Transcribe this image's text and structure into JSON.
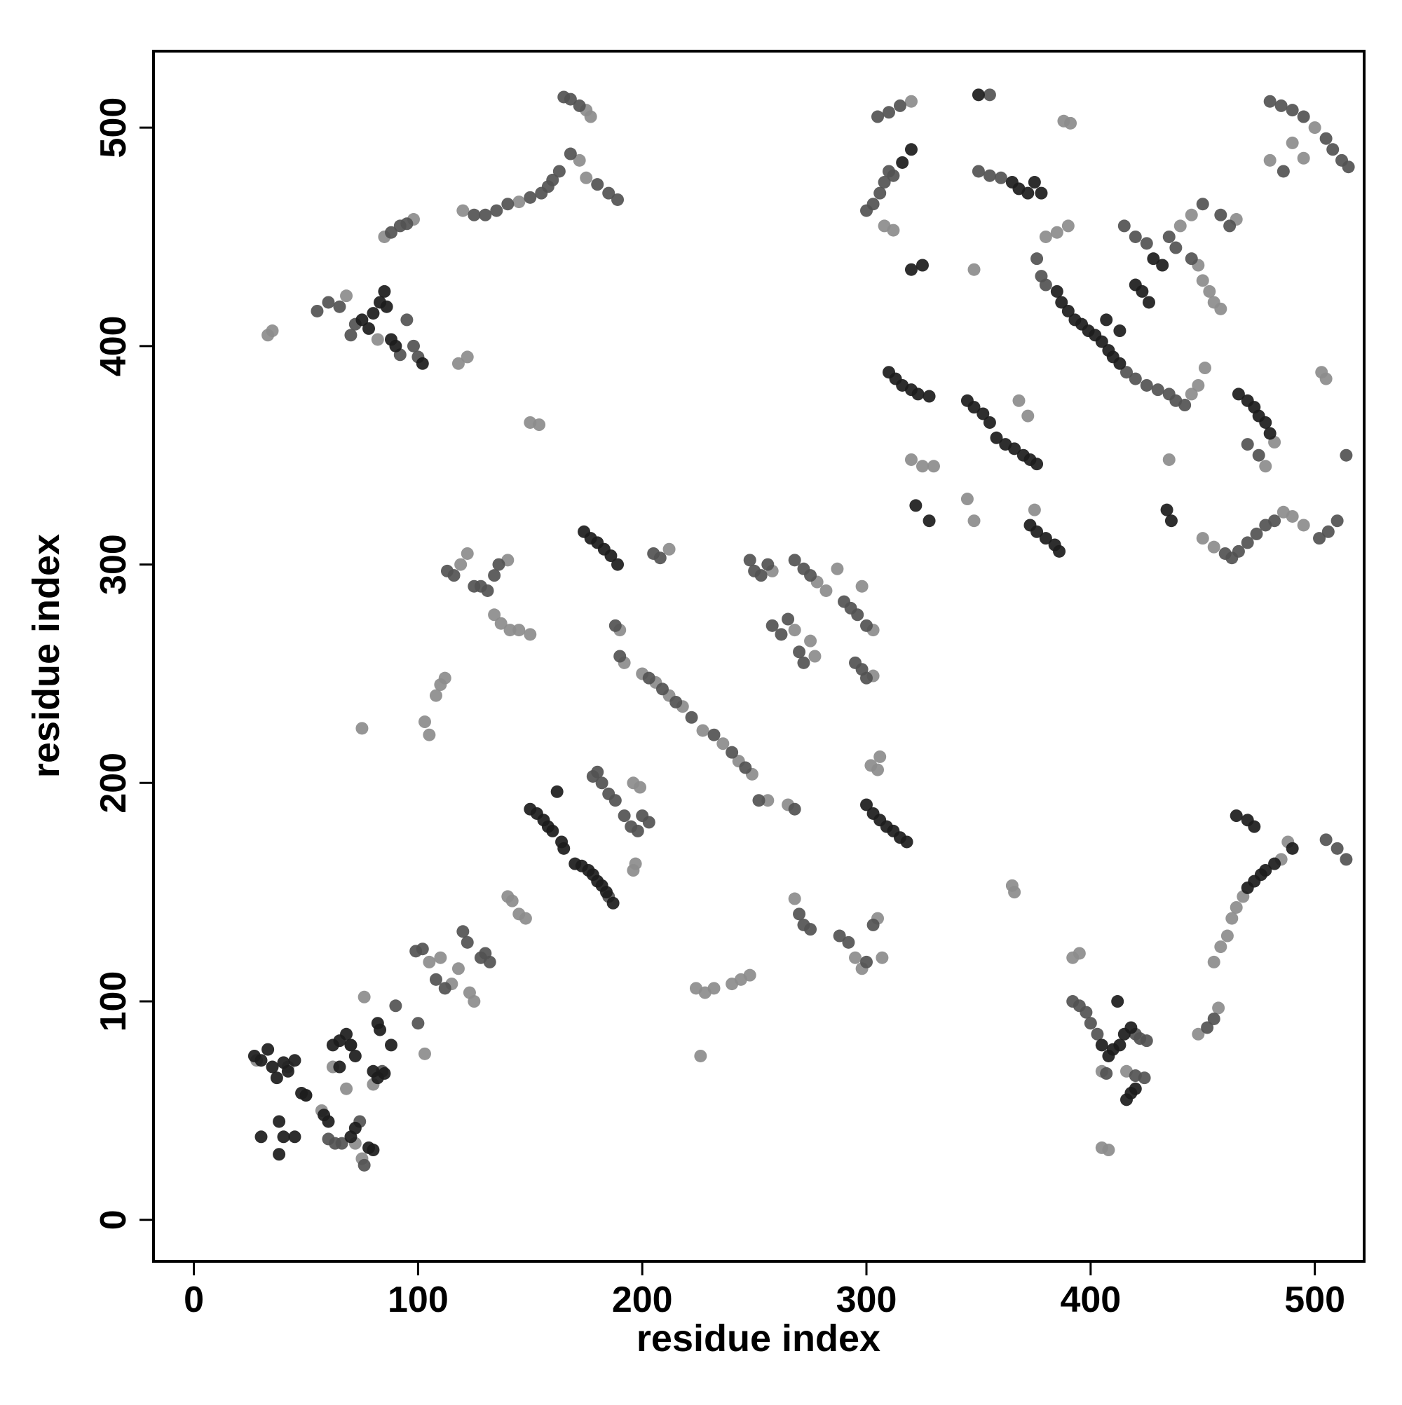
{
  "chart_data": {
    "type": "scatter",
    "x_label": "residue index",
    "y_label": "residue index",
    "xlim": [
      -18,
      522
    ],
    "ylim": [
      -19,
      535
    ],
    "xticks": [
      0,
      100,
      200,
      300,
      400,
      500
    ],
    "yticks": [
      0,
      100,
      200,
      300,
      400,
      500
    ],
    "grid": false,
    "series": [
      {
        "color": "#8c8c8c",
        "x": [
          105,
          110,
          115,
          118,
          125,
          123,
          140,
          142,
          145,
          148,
          196,
          199,
          196,
          197,
          200,
          206,
          212,
          218,
          227,
          236,
          243,
          249,
          256,
          265,
          258,
          268,
          275,
          277,
          278,
          282,
          287,
          303,
          303,
          298,
          302,
          305,
          306,
          268,
          295,
          298,
          305,
          307,
          224,
          228,
          232,
          240,
          244,
          248,
          226,
          75,
          150,
          154,
          103,
          105,
          108,
          110,
          112,
          119,
          122,
          140,
          134,
          137,
          141,
          145,
          150,
          212,
          190,
          192,
          33,
          35,
          68,
          82,
          118,
          122,
          85,
          98,
          120,
          145,
          172,
          175,
          175,
          177,
          320,
          308,
          312,
          348,
          380,
          385,
          390,
          445,
          448,
          451,
          388,
          391,
          440,
          445,
          465,
          448,
          450,
          453,
          455,
          458,
          500,
          480,
          490,
          495,
          320,
          325,
          330,
          368,
          372,
          345,
          348,
          375,
          435,
          450,
          455,
          486,
          490,
          495,
          503,
          505,
          482,
          478,
          392,
          395,
          405,
          408,
          405,
          416,
          448,
          457,
          365,
          366,
          455,
          458,
          461,
          463,
          465,
          468,
          485,
          488,
          28,
          42,
          50,
          57,
          62,
          68,
          72,
          75,
          76,
          80,
          103,
          70
        ],
        "values": [
          118,
          120,
          108,
          115,
          100,
          104,
          148,
          146,
          140,
          138,
          200,
          198,
          160,
          163,
          250,
          246,
          240,
          235,
          224,
          218,
          210,
          204,
          192,
          190,
          297,
          270,
          265,
          258,
          292,
          288,
          298,
          270,
          249,
          290,
          208,
          206,
          212,
          147,
          120,
          115,
          138,
          120,
          106,
          104,
          106,
          108,
          110,
          112,
          75,
          225,
          365,
          364,
          228,
          222,
          240,
          245,
          248,
          300,
          305,
          302,
          277,
          273,
          270,
          270,
          268,
          307,
          270,
          255,
          405,
          407,
          423,
          403,
          392,
          395,
          450,
          458,
          462,
          466,
          485,
          477,
          508,
          505,
          512,
          455,
          453,
          435,
          450,
          452,
          455,
          378,
          382,
          390,
          503,
          502,
          455,
          460,
          458,
          437,
          430,
          425,
          420,
          417,
          500,
          485,
          493,
          486,
          348,
          345,
          345,
          375,
          368,
          330,
          320,
          325,
          348,
          312,
          308,
          324,
          322,
          318,
          388,
          385,
          356,
          345,
          120,
          122,
          33,
          32,
          68,
          68,
          85,
          97,
          153,
          150,
          118,
          125,
          130,
          138,
          143,
          148,
          165,
          173,
          73,
          70,
          57,
          50,
          70,
          60,
          35,
          28,
          102,
          62,
          76,
          80
        ]
      },
      {
        "color": "#525252",
        "x": [
          99,
          102,
          108,
          112,
          120,
          122,
          128,
          130,
          132,
          185,
          178,
          180,
          182,
          185,
          188,
          192,
          195,
          198,
          200,
          203,
          203,
          209,
          215,
          222,
          232,
          240,
          246,
          252,
          268,
          248,
          250,
          253,
          256,
          258,
          262,
          265,
          270,
          272,
          268,
          272,
          275,
          290,
          293,
          296,
          300,
          295,
          298,
          300,
          270,
          272,
          275,
          288,
          292,
          300,
          303,
          55,
          60,
          65,
          70,
          72,
          92,
          95,
          98,
          100,
          88,
          92,
          95,
          125,
          130,
          135,
          140,
          150,
          155,
          158,
          160,
          163,
          168,
          180,
          185,
          189,
          165,
          168,
          172,
          300,
          303,
          306,
          308,
          310,
          312,
          305,
          310,
          315,
          355,
          350,
          355,
          360,
          376,
          378,
          380,
          416,
          420,
          425,
          430,
          435,
          438,
          442,
          415,
          420,
          425,
          435,
          438,
          445,
          450,
          458,
          462,
          480,
          485,
          490,
          495,
          505,
          508,
          512,
          515,
          486,
          460,
          463,
          466,
          470,
          474,
          478,
          482,
          502,
          506,
          510,
          514,
          470,
          475,
          392,
          395,
          398,
          400,
          403,
          420,
          422,
          425,
          407,
          420,
          424,
          60,
          63,
          66,
          74,
          76,
          84,
          90,
          100,
          113,
          116,
          125,
          128,
          131,
          134,
          136,
          205,
          208,
          188,
          190,
          505,
          510,
          514,
          455,
          452
        ],
        "values": [
          123,
          124,
          110,
          106,
          132,
          127,
          120,
          122,
          118,
          148,
          203,
          205,
          200,
          195,
          192,
          185,
          180,
          178,
          185,
          182,
          248,
          243,
          237,
          230,
          222,
          214,
          207,
          192,
          188,
          302,
          297,
          295,
          300,
          272,
          268,
          275,
          260,
          255,
          302,
          298,
          295,
          283,
          280,
          277,
          272,
          255,
          252,
          248,
          140,
          135,
          133,
          130,
          127,
          118,
          135,
          416,
          420,
          418,
          405,
          410,
          396,
          412,
          400,
          395,
          452,
          455,
          456,
          460,
          460,
          462,
          465,
          468,
          470,
          473,
          476,
          480,
          488,
          474,
          470,
          467,
          514,
          513,
          510,
          462,
          465,
          470,
          475,
          480,
          478,
          505,
          507,
          510,
          515,
          480,
          478,
          477,
          440,
          432,
          428,
          388,
          385,
          382,
          380,
          378,
          375,
          373,
          455,
          450,
          447,
          450,
          445,
          440,
          465,
          460,
          455,
          512,
          510,
          508,
          505,
          495,
          490,
          485,
          482,
          480,
          305,
          303,
          306,
          310,
          314,
          318,
          320,
          312,
          315,
          320,
          350,
          355,
          350,
          100,
          98,
          95,
          90,
          85,
          85,
          83,
          82,
          67,
          66,
          65,
          37,
          35,
          35,
          45,
          25,
          68,
          98,
          90,
          297,
          295,
          290,
          290,
          288,
          295,
          300,
          305,
          303,
          272,
          258,
          174,
          170,
          165,
          92,
          88
        ]
      },
      {
        "color": "#1c1c1c",
        "x": [
          27,
          30,
          33,
          35,
          37,
          40,
          42,
          45,
          38,
          40,
          45,
          48,
          50,
          30,
          38,
          58,
          60,
          62,
          65,
          68,
          70,
          72,
          65,
          150,
          153,
          156,
          158,
          160,
          162,
          164,
          165,
          170,
          173,
          176,
          178,
          180,
          182,
          184,
          187,
          310,
          313,
          316,
          320,
          323,
          328,
          322,
          328,
          345,
          348,
          352,
          355,
          358,
          362,
          366,
          370,
          373,
          376,
          373,
          376,
          380,
          384,
          386,
          434,
          436,
          466,
          470,
          473,
          475,
          478,
          480,
          385,
          387,
          390,
          393,
          396,
          399,
          402,
          405,
          408,
          410,
          413,
          407,
          413,
          420,
          423,
          426,
          428,
          432,
          75,
          78,
          80,
          83,
          86,
          88,
          90,
          102,
          85,
          405,
          408,
          410,
          413,
          415,
          418,
          412,
          418,
          416,
          420,
          300,
          303,
          306,
          309,
          312,
          315,
          318,
          174,
          177,
          180,
          183,
          186,
          189,
          70,
          72,
          78,
          80,
          80,
          82,
          85,
          82,
          83,
          88,
          350,
          365,
          368,
          372,
          375,
          378,
          316,
          320,
          320,
          325,
          473,
          470,
          465,
          490,
          470,
          473,
          476,
          478,
          482
        ],
        "values": [
          75,
          73,
          78,
          70,
          65,
          72,
          68,
          73,
          45,
          38,
          38,
          58,
          57,
          38,
          30,
          48,
          45,
          80,
          82,
          85,
          80,
          75,
          70,
          188,
          186,
          183,
          180,
          178,
          196,
          173,
          170,
          163,
          162,
          160,
          158,
          155,
          153,
          150,
          145,
          388,
          385,
          382,
          380,
          378,
          377,
          327,
          320,
          375,
          372,
          369,
          365,
          358,
          355,
          353,
          350,
          348,
          346,
          318,
          315,
          312,
          309,
          306,
          325,
          320,
          378,
          375,
          372,
          368,
          365,
          360,
          425,
          420,
          416,
          412,
          410,
          407,
          405,
          402,
          398,
          395,
          392,
          412,
          407,
          428,
          425,
          420,
          440,
          437,
          412,
          408,
          415,
          420,
          418,
          403,
          400,
          392,
          425,
          80,
          75,
          78,
          80,
          85,
          88,
          100,
          58,
          55,
          60,
          190,
          186,
          183,
          180,
          178,
          175,
          173,
          315,
          312,
          310,
          307,
          304,
          300,
          38,
          42,
          33,
          32,
          68,
          65,
          67,
          90,
          87,
          80,
          515,
          475,
          472,
          470,
          475,
          470,
          484,
          490,
          435,
          437,
          180,
          183,
          185,
          170,
          152,
          155,
          158,
          160,
          163
        ]
      }
    ]
  }
}
